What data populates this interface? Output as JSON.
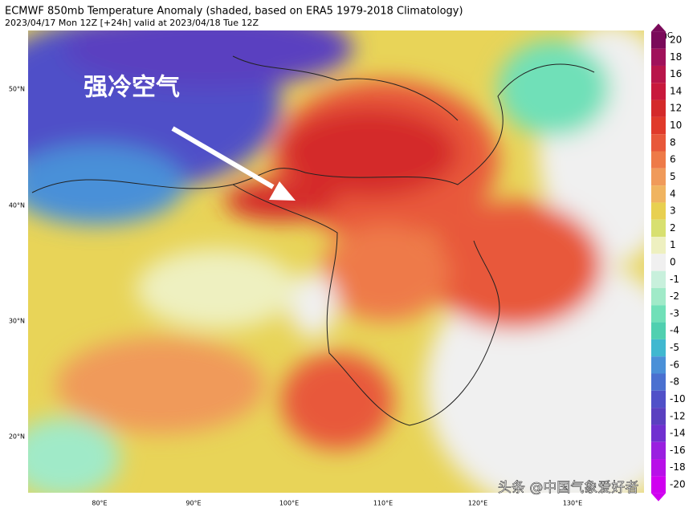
{
  "header": {
    "title": "ECMWF 850mb Temperature Anomaly (shaded, based on ERA5 1979-2018 Climatology)",
    "subtitle": "2023/04/17 Mon 12Z [+24h] valid at 2023/04/18 Tue 12Z"
  },
  "map": {
    "lat_labels": [
      "50°N",
      "40°N",
      "30°N",
      "20°N"
    ],
    "lon_labels": [
      "80°E",
      "90°E",
      "100°E",
      "110°E",
      "120°E",
      "130°E"
    ],
    "annotation": "强冷空气",
    "watermark": "头条 @中国气象爱好者"
  },
  "colorbar": {
    "unit": "degC",
    "levels": [
      20,
      18,
      16,
      14,
      12,
      10,
      8,
      6,
      5,
      4,
      3,
      2,
      1,
      0,
      -1,
      -2,
      -3,
      -4,
      -5,
      -6,
      -8,
      -10,
      -12,
      -14,
      -16,
      -18,
      -20
    ],
    "colors": [
      "#7a0a5a",
      "#a0115a",
      "#b8154a",
      "#c8193c",
      "#d42a2a",
      "#e03a2a",
      "#e8583a",
      "#ee7a48",
      "#f09a5a",
      "#f0b460",
      "#e8d050",
      "#d8e070",
      "#eef0c0",
      "#f0f0f0",
      "#c8f0dc",
      "#a0eac8",
      "#70e0b8",
      "#50d0b0",
      "#40b8d0",
      "#4a90d8",
      "#4a70d0",
      "#5050c8",
      "#5a40c0",
      "#7030d0",
      "#9a20e0",
      "#b810e8",
      "#d000f0"
    ]
  }
}
